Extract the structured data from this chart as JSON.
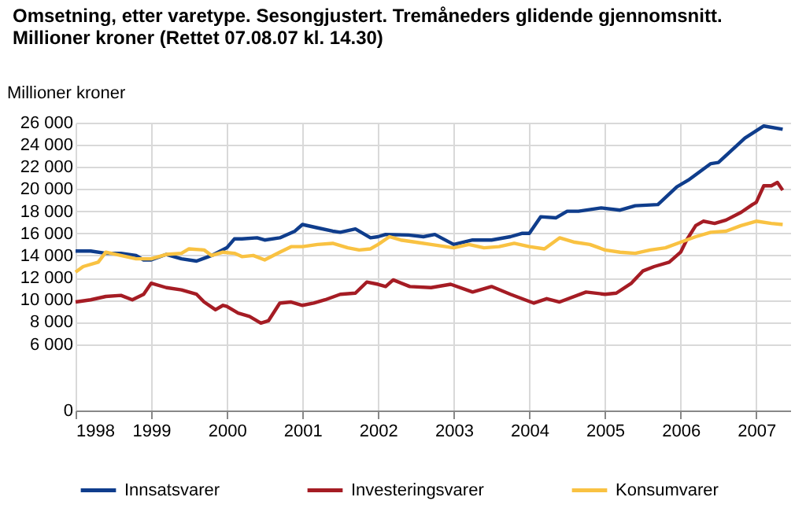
{
  "chart_data": {
    "type": "line",
    "title": [
      "Omsetning, etter varetype. Sesongjustert. Tremåneders glidende gjennomsnitt.",
      "Millioner kroner (Rettet 07.08.07 kl. 14.30)"
    ],
    "ylabel": "Millioner kroner",
    "xlim": [
      1998,
      2007.45
    ],
    "xticks": [
      1998,
      1999,
      2000,
      2001,
      2002,
      2003,
      2004,
      2005,
      2006,
      2007
    ],
    "ylim": [
      0,
      26000
    ],
    "yticks": [
      0,
      {
        "value": 6000,
        "label": "6 000"
      },
      {
        "value": 8000,
        "label": "8 000"
      },
      {
        "value": 10000,
        "label": "10 000"
      },
      {
        "value": 12000,
        "label": "12 000"
      },
      {
        "value": 14000,
        "label": "14 000"
      },
      {
        "value": 16000,
        "label": "16 000"
      },
      {
        "value": 18000,
        "label": "18 000"
      },
      {
        "value": 20000,
        "label": "20 000"
      },
      {
        "value": 22000,
        "label": "22 000"
      },
      {
        "value": 24000,
        "label": "24 000"
      },
      {
        "value": 26000,
        "label": "26 000"
      }
    ],
    "grid": true,
    "legend": "bottom",
    "line_style": "solid",
    "series": [
      {
        "name": "Innsatsvarer",
        "color": "#0f3d8c",
        "x": [
          1998.0,
          1998.2,
          1998.4,
          1998.6,
          1998.8,
          1998.9,
          1999.0,
          1999.2,
          1999.4,
          1999.6,
          1999.8,
          2000.0,
          2000.1,
          2000.2,
          2000.4,
          2000.5,
          2000.7,
          2000.9,
          2001.0,
          2001.2,
          2001.4,
          2001.5,
          2001.7,
          2001.9,
          2002.0,
          2002.1,
          2002.4,
          2002.6,
          2002.75,
          2003.0,
          2003.25,
          2003.5,
          2003.75,
          2003.9,
          2004.0,
          2004.15,
          2004.35,
          2004.5,
          2004.65,
          2004.95,
          2005.2,
          2005.4,
          2005.7,
          2005.95,
          2006.1,
          2006.4,
          2006.5,
          2006.85,
          2007.1,
          2007.35
        ],
        "values": [
          14400,
          14400,
          14200,
          14200,
          14000,
          13600,
          13600,
          14100,
          13700,
          13500,
          14000,
          14700,
          15500,
          15500,
          15600,
          15400,
          15600,
          16200,
          16800,
          16500,
          16200,
          16100,
          16400,
          15600,
          15700,
          15900,
          15850,
          15700,
          15900,
          15000,
          15400,
          15400,
          15700,
          16000,
          16000,
          17500,
          17400,
          18000,
          18000,
          18300,
          18100,
          18500,
          18600,
          20200,
          20800,
          22300,
          22400,
          24600,
          25700,
          25400
        ]
      },
      {
        "name": "Investeringsvarer",
        "color": "#a51c24",
        "x": [
          1998.0,
          1998.2,
          1998.4,
          1998.6,
          1998.75,
          1998.9,
          1999.0,
          1999.2,
          1999.4,
          1999.6,
          1999.7,
          1999.85,
          1999.95,
          2000.0,
          2000.15,
          2000.3,
          2000.45,
          2000.55,
          2000.7,
          2000.85,
          2001.0,
          2001.15,
          2001.3,
          2001.5,
          2001.7,
          2001.85,
          2002.0,
          2002.1,
          2002.2,
          2002.42,
          2002.7,
          2002.96,
          2003.25,
          2003.5,
          2003.75,
          2004.06,
          2004.23,
          2004.4,
          2004.75,
          2005.0,
          2005.15,
          2005.35,
          2005.5,
          2005.65,
          2005.85,
          2006.0,
          2006.08,
          2006.2,
          2006.3,
          2006.45,
          2006.6,
          2006.8,
          2006.95,
          2007.0,
          2007.1,
          2007.2,
          2007.28,
          2007.35
        ],
        "values": [
          9800,
          10000,
          10300,
          10400,
          10000,
          10500,
          11500,
          11100,
          10900,
          10500,
          9800,
          9100,
          9500,
          9400,
          8800,
          8500,
          7900,
          8100,
          9700,
          9800,
          9500,
          9700,
          10000,
          10500,
          10600,
          11600,
          11400,
          11200,
          11800,
          11200,
          11100,
          11400,
          10700,
          11200,
          10500,
          9700,
          10100,
          9800,
          10700,
          10500,
          10600,
          11500,
          12600,
          13000,
          13400,
          14300,
          15400,
          16700,
          17100,
          16900,
          17200,
          17900,
          18600,
          18800,
          20300,
          20300,
          20600,
          19900
        ]
      },
      {
        "name": "Konsumvarer",
        "color": "#f9c242",
        "x": [
          1998.0,
          1998.1,
          1998.3,
          1998.4,
          1998.6,
          1998.8,
          1999.0,
          1999.2,
          1999.4,
          1999.5,
          1999.7,
          1999.8,
          1999.95,
          2000.1,
          2000.2,
          2000.35,
          2000.5,
          2000.7,
          2000.85,
          2001.0,
          2001.2,
          2001.4,
          2001.6,
          2001.75,
          2001.9,
          2002.0,
          2002.15,
          2002.3,
          2002.5,
          2002.7,
          2003.0,
          2003.2,
          2003.4,
          2003.6,
          2003.8,
          2004.0,
          2004.2,
          2004.4,
          2004.6,
          2004.8,
          2005.0,
          2005.2,
          2005.4,
          2005.6,
          2005.8,
          2006.0,
          2006.2,
          2006.4,
          2006.6,
          2006.8,
          2007.0,
          2007.2,
          2007.35
        ],
        "values": [
          12500,
          13000,
          13400,
          14300,
          14000,
          13700,
          13700,
          14100,
          14200,
          14600,
          14500,
          14000,
          14300,
          14200,
          13900,
          14000,
          13600,
          14300,
          14800,
          14800,
          15000,
          15100,
          14700,
          14500,
          14600,
          15000,
          15700,
          15400,
          15200,
          15000,
          14700,
          15000,
          14700,
          14800,
          15100,
          14800,
          14600,
          15600,
          15200,
          15000,
          14500,
          14300,
          14200,
          14500,
          14700,
          15200,
          15700,
          16100,
          16200,
          16700,
          17100,
          16900,
          16800
        ]
      }
    ]
  }
}
